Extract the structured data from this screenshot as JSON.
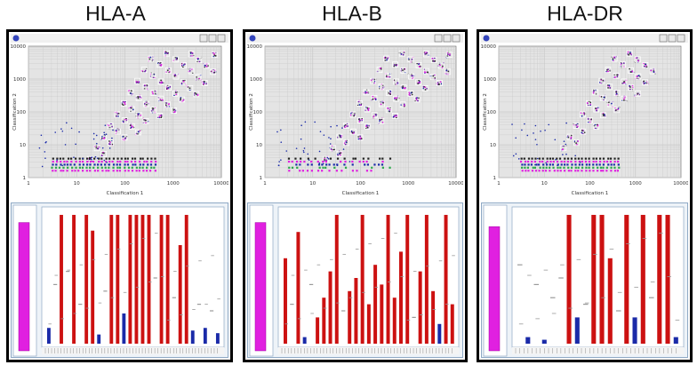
{
  "panels": [
    {
      "title": "HLA-A",
      "xlabel": "Classification 1",
      "ylabel": "Classification 2",
      "xticks": [
        "1",
        "10",
        "100",
        "1000",
        "10000"
      ],
      "yticks": [
        "1",
        "10",
        "100",
        "1000",
        "10000"
      ],
      "scatter_density": 1.0,
      "bars": [
        {
          "v": 0.12,
          "c": "blue"
        },
        {
          "v": 0.45,
          "c": "gray"
        },
        {
          "v": 0.98,
          "c": "red"
        },
        {
          "v": 0.55,
          "c": "gray"
        },
        {
          "v": 0.98,
          "c": "red"
        },
        {
          "v": 0.3,
          "c": "gray"
        },
        {
          "v": 0.98,
          "c": "red"
        },
        {
          "v": 0.86,
          "c": "red"
        },
        {
          "v": 0.07,
          "c": "blue"
        },
        {
          "v": 0.4,
          "c": "gray"
        },
        {
          "v": 0.98,
          "c": "red"
        },
        {
          "v": 0.98,
          "c": "red"
        },
        {
          "v": 0.23,
          "c": "blue"
        },
        {
          "v": 0.98,
          "c": "red"
        },
        {
          "v": 0.98,
          "c": "red"
        },
        {
          "v": 0.98,
          "c": "red"
        },
        {
          "v": 0.98,
          "c": "red"
        },
        {
          "v": 0.5,
          "c": "gray"
        },
        {
          "v": 0.98,
          "c": "red"
        },
        {
          "v": 0.98,
          "c": "red"
        },
        {
          "v": 0.35,
          "c": "gray"
        },
        {
          "v": 0.75,
          "c": "red"
        },
        {
          "v": 0.98,
          "c": "red"
        },
        {
          "v": 0.1,
          "c": "blue"
        },
        {
          "v": 0.3,
          "c": "gray"
        },
        {
          "v": 0.12,
          "c": "blue"
        },
        {
          "v": 0.25,
          "c": "gray"
        },
        {
          "v": 0.08,
          "c": "blue"
        }
      ],
      "side_bar": 0.95
    },
    {
      "title": "HLA-B",
      "xlabel": "Classification 1",
      "ylabel": "Classification 2",
      "xticks": [
        "1",
        "10",
        "100",
        "1000",
        "10000"
      ],
      "yticks": [
        "1",
        "10",
        "100",
        "1000",
        "10000"
      ],
      "scatter_density": 0.85,
      "bars": [
        {
          "v": 0.65,
          "c": "red"
        },
        {
          "v": 0.3,
          "c": "gray"
        },
        {
          "v": 0.85,
          "c": "red"
        },
        {
          "v": 0.05,
          "c": "blue"
        },
        {
          "v": 0.45,
          "c": "gray"
        },
        {
          "v": 0.2,
          "c": "red"
        },
        {
          "v": 0.35,
          "c": "red"
        },
        {
          "v": 0.55,
          "c": "red"
        },
        {
          "v": 0.98,
          "c": "red"
        },
        {
          "v": 0.25,
          "c": "gray"
        },
        {
          "v": 0.4,
          "c": "red"
        },
        {
          "v": 0.5,
          "c": "red"
        },
        {
          "v": 0.98,
          "c": "red"
        },
        {
          "v": 0.3,
          "c": "red"
        },
        {
          "v": 0.6,
          "c": "red"
        },
        {
          "v": 0.45,
          "c": "red"
        },
        {
          "v": 0.98,
          "c": "red"
        },
        {
          "v": 0.35,
          "c": "red"
        },
        {
          "v": 0.7,
          "c": "red"
        },
        {
          "v": 0.98,
          "c": "red"
        },
        {
          "v": 0.2,
          "c": "gray"
        },
        {
          "v": 0.55,
          "c": "red"
        },
        {
          "v": 0.98,
          "c": "red"
        },
        {
          "v": 0.4,
          "c": "red"
        },
        {
          "v": 0.15,
          "c": "blue"
        },
        {
          "v": 0.98,
          "c": "red"
        },
        {
          "v": 0.3,
          "c": "red"
        }
      ],
      "side_bar": 0.95
    },
    {
      "title": "HLA-DR",
      "xlabel": "Classification 1",
      "ylabel": "Classification 2",
      "xticks": [
        "1",
        "10",
        "100",
        "1000",
        "10000"
      ],
      "yticks": [
        "1",
        "10",
        "100",
        "1000",
        "10000"
      ],
      "scatter_density": 0.7,
      "bars": [
        {
          "v": 0.6,
          "c": "gray"
        },
        {
          "v": 0.05,
          "c": "blue"
        },
        {
          "v": 0.45,
          "c": "gray"
        },
        {
          "v": 0.03,
          "c": "blue"
        },
        {
          "v": 0.35,
          "c": "gray"
        },
        {
          "v": 0.5,
          "c": "gray"
        },
        {
          "v": 0.98,
          "c": "red"
        },
        {
          "v": 0.2,
          "c": "blue"
        },
        {
          "v": 0.3,
          "c": "gray"
        },
        {
          "v": 0.98,
          "c": "red"
        },
        {
          "v": 0.98,
          "c": "red"
        },
        {
          "v": 0.65,
          "c": "red"
        },
        {
          "v": 0.25,
          "c": "gray"
        },
        {
          "v": 0.98,
          "c": "red"
        },
        {
          "v": 0.2,
          "c": "blue"
        },
        {
          "v": 0.98,
          "c": "red"
        },
        {
          "v": 0.35,
          "c": "gray"
        },
        {
          "v": 0.98,
          "c": "red"
        },
        {
          "v": 0.98,
          "c": "red"
        },
        {
          "v": 0.05,
          "c": "blue"
        }
      ],
      "side_bar": 0.92
    }
  ],
  "colors": {
    "red": "#cc1111",
    "blue": "#1a2aa8",
    "gray": "#9a9a9a",
    "magenta": "#e020e0",
    "purple": "#6a1aa8",
    "green": "#2aa84a",
    "grid": "#c8c8c8",
    "plot_bg": "#e4e4e4"
  }
}
